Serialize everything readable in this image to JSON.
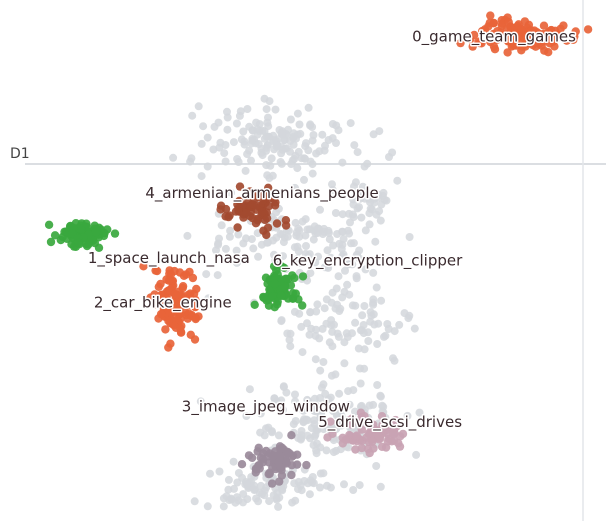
{
  "chart_data": {
    "type": "scatter",
    "title": "",
    "xlabel": "",
    "ylabel": "D1",
    "xlim": [
      0,
      10
    ],
    "ylim": [
      0,
      10
    ],
    "grid": false,
    "background_points_color": "#d3d7dc",
    "clusters": [
      {
        "label": "0_game_team_games",
        "color": "#e8643a",
        "x": 8.6,
        "y": 9.3,
        "spread_x": 0.75,
        "spread_y": 0.32,
        "count": 130,
        "label_x": 6.8,
        "label_y": 9.2
      },
      {
        "label": "1_space_launch_nasa",
        "color": "#3aa83e",
        "x": 1.35,
        "y": 5.5,
        "spread_x": 0.38,
        "spread_y": 0.26,
        "count": 90,
        "label_x": 1.45,
        "label_y": 4.95
      },
      {
        "label": "2_car_bike_engine",
        "color": "#e8643a",
        "x": 2.9,
        "y": 4.2,
        "spread_x": 0.38,
        "spread_y": 0.6,
        "count": 130,
        "label_x": 1.55,
        "label_y": 4.1
      },
      {
        "label": "3_image_jpeg_window",
        "color": "#9a8a9a",
        "x": 4.6,
        "y": 1.1,
        "spread_x": 0.45,
        "spread_y": 0.35,
        "count": 70,
        "label_x": 3.0,
        "label_y": 2.1
      },
      {
        "label": "4_armenian_armenians_people",
        "color": "#a34a30",
        "x": 4.2,
        "y": 6.0,
        "spread_x": 0.5,
        "spread_y": 0.35,
        "count": 70,
        "label_x": 2.4,
        "label_y": 6.2
      },
      {
        "label": "5_drive_scsi_drives",
        "color": "#c9a3b3",
        "x": 6.1,
        "y": 1.7,
        "spread_x": 0.6,
        "spread_y": 0.32,
        "count": 80,
        "label_x": 5.25,
        "label_y": 1.8
      },
      {
        "label": "6_key_encryption_clipper",
        "color": "#3aa83e",
        "x": 4.6,
        "y": 4.5,
        "spread_x": 0.3,
        "spread_y": 0.35,
        "count": 90,
        "label_x": 4.5,
        "label_y": 4.9
      }
    ]
  }
}
